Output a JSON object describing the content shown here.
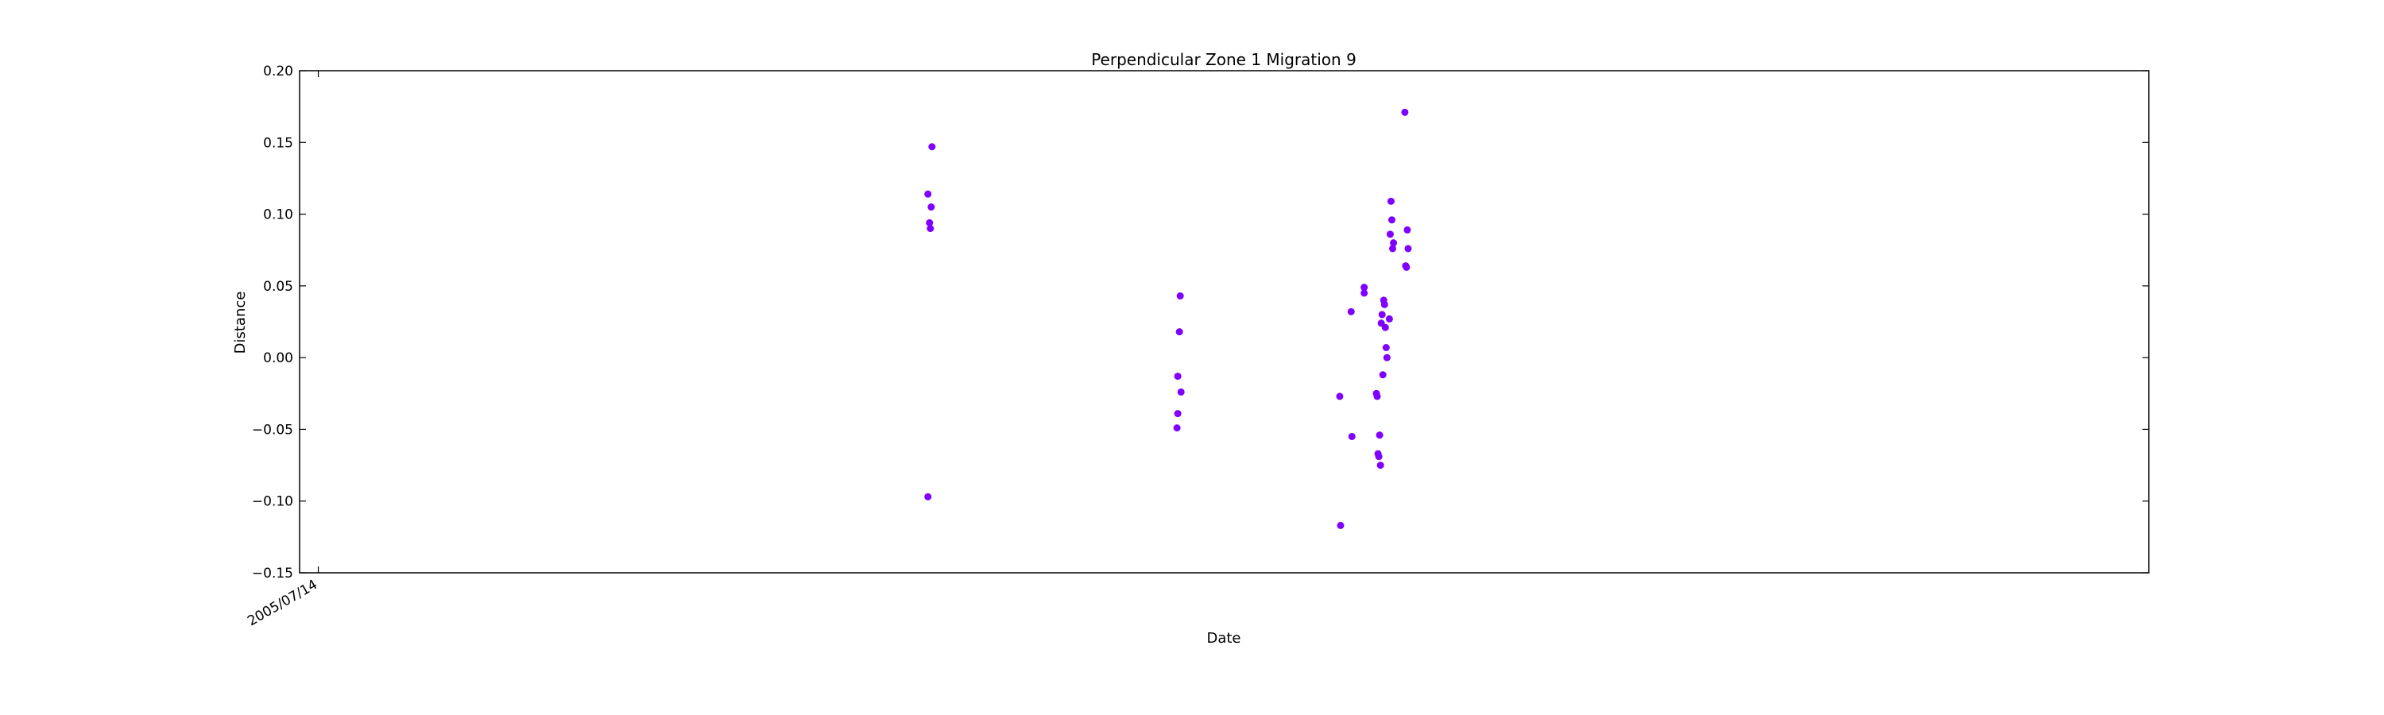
{
  "chart_data": {
    "type": "scatter",
    "title": "Perpendicular Zone 1 Migration 9",
    "xlabel": "Date",
    "ylabel": "Distance",
    "ylim": [
      -0.15,
      0.2
    ],
    "yticks": [
      -0.15,
      -0.1,
      -0.05,
      0.0,
      0.05,
      0.1,
      0.15,
      0.2
    ],
    "ytick_labels": [
      "−0.15",
      "−0.10",
      "−0.05",
      "0.00",
      "0.05",
      "0.10",
      "0.15",
      "0.20"
    ],
    "xlim": [
      "2005/06/21",
      "2011/09/10"
    ],
    "xticks": [
      "2005/07/14"
    ],
    "xtick_labels": [
      "2005/07/14"
    ],
    "grid": false,
    "marker_color": "#7f00ff",
    "points": [
      {
        "x": "2007/08/02",
        "y": 0.114
      },
      {
        "x": "2007/08/02",
        "y": -0.097
      },
      {
        "x": "2007/08/04",
        "y": 0.094
      },
      {
        "x": "2007/08/05",
        "y": 0.09
      },
      {
        "x": "2007/08/06",
        "y": 0.105
      },
      {
        "x": "2007/08/07",
        "y": 0.147
      },
      {
        "x": "2008/06/04",
        "y": -0.013
      },
      {
        "x": "2008/06/03",
        "y": -0.049
      },
      {
        "x": "2008/06/04",
        "y": -0.039
      },
      {
        "x": "2008/06/06",
        "y": 0.018
      },
      {
        "x": "2008/06/07",
        "y": 0.043
      },
      {
        "x": "2008/06/08",
        "y": -0.024
      },
      {
        "x": "2008/12/20",
        "y": -0.027
      },
      {
        "x": "2008/12/21",
        "y": -0.117
      },
      {
        "x": "2009/01/03",
        "y": 0.032
      },
      {
        "x": "2009/01/04",
        "y": -0.055
      },
      {
        "x": "2009/01/19",
        "y": 0.049
      },
      {
        "x": "2009/01/19",
        "y": 0.045
      },
      {
        "x": "2009/02/03",
        "y": -0.025
      },
      {
        "x": "2009/02/04",
        "y": -0.027
      },
      {
        "x": "2009/02/05",
        "y": -0.067
      },
      {
        "x": "2009/02/06",
        "y": -0.069
      },
      {
        "x": "2009/02/07",
        "y": -0.054
      },
      {
        "x": "2009/02/08",
        "y": -0.075
      },
      {
        "x": "2009/02/09",
        "y": 0.024
      },
      {
        "x": "2009/02/10",
        "y": 0.03
      },
      {
        "x": "2009/02/11",
        "y": -0.012
      },
      {
        "x": "2009/02/12",
        "y": 0.04
      },
      {
        "x": "2009/02/13",
        "y": 0.037
      },
      {
        "x": "2009/02/14",
        "y": 0.021
      },
      {
        "x": "2009/02/15",
        "y": 0.007
      },
      {
        "x": "2009/02/16",
        "y": 0.0
      },
      {
        "x": "2009/02/19",
        "y": 0.027
      },
      {
        "x": "2009/02/20",
        "y": 0.086
      },
      {
        "x": "2009/02/21",
        "y": 0.109
      },
      {
        "x": "2009/02/22",
        "y": 0.096
      },
      {
        "x": "2009/02/23",
        "y": 0.076
      },
      {
        "x": "2009/02/24",
        "y": 0.08
      },
      {
        "x": "2009/03/10",
        "y": 0.171
      },
      {
        "x": "2009/03/11",
        "y": 0.064
      },
      {
        "x": "2009/03/12",
        "y": 0.063
      },
      {
        "x": "2009/03/13",
        "y": 0.089
      },
      {
        "x": "2009/03/14",
        "y": 0.076
      }
    ]
  }
}
